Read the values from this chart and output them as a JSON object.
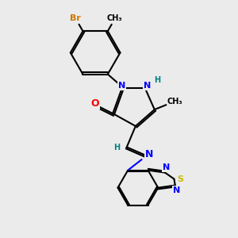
{
  "background_color": "#ebebeb",
  "atom_colors": {
    "C": "#000000",
    "N": "#0000ff",
    "O": "#ff0000",
    "S": "#ccbb00",
    "Br": "#cc7700",
    "H": "#008080"
  },
  "figsize": [
    3.0,
    3.0
  ],
  "dpi": 100
}
